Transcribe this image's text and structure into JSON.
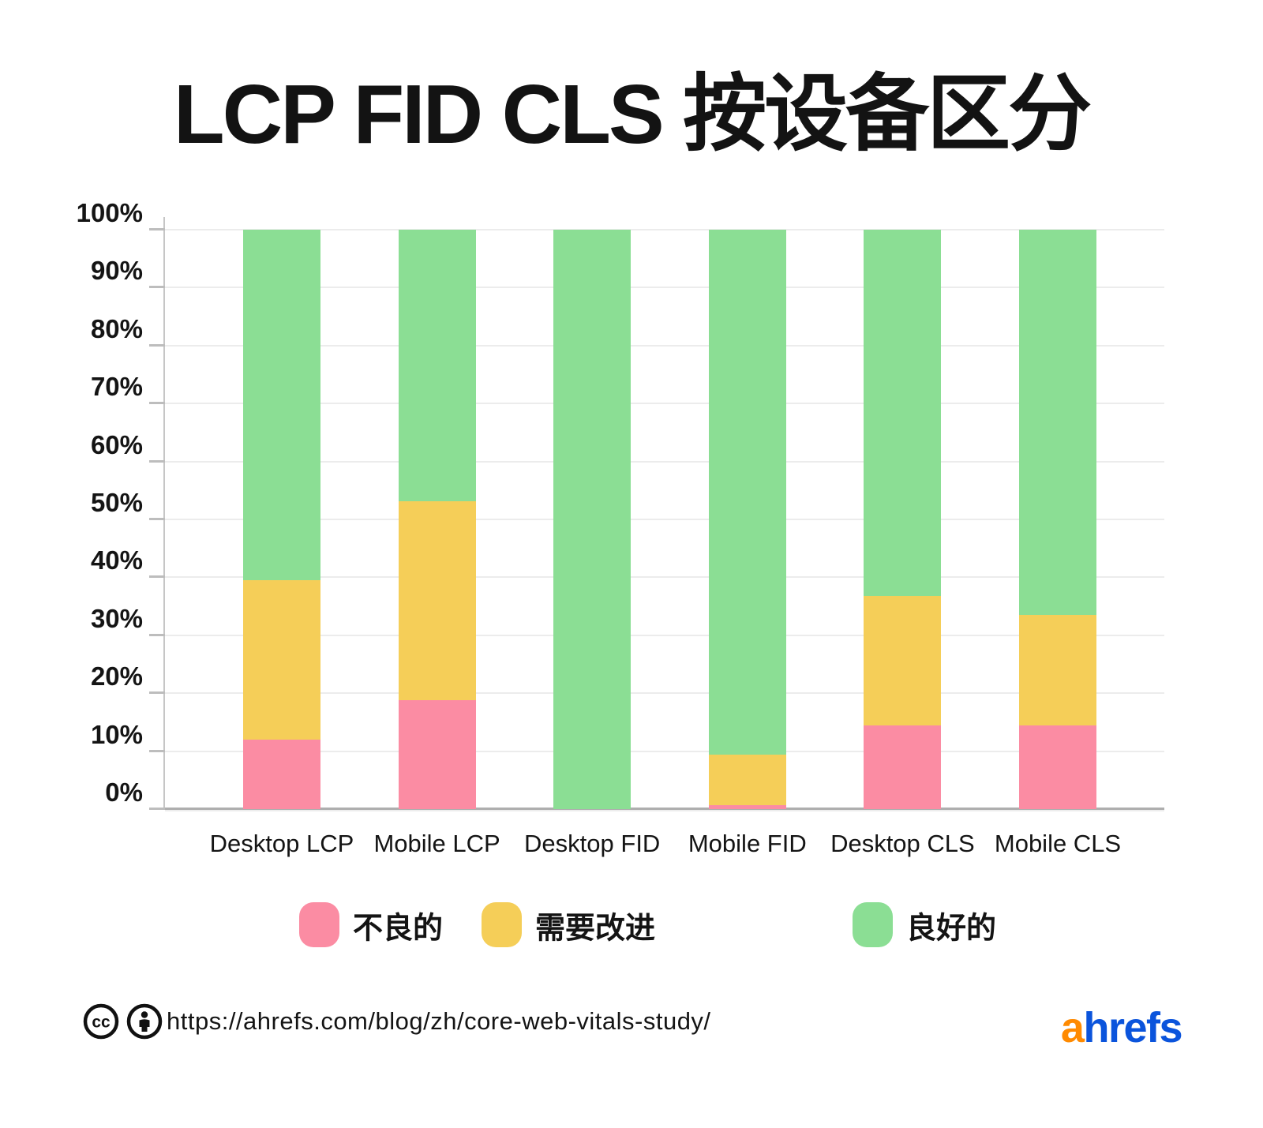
{
  "title": "LCP FID CLS 按设备区分",
  "chart_data": {
    "type": "bar",
    "stacked": true,
    "title": "LCP FID CLS 按设备区分",
    "categories": [
      "Desktop LCP",
      "Mobile LCP",
      "Desktop FID",
      "Mobile FID",
      "Desktop CLS",
      "Mobile CLS"
    ],
    "series": [
      {
        "name": "不良的",
        "color": "#FB8CA3",
        "values": [
          12,
          18.8,
          0,
          0.7,
          14.5,
          14.5
        ]
      },
      {
        "name": "需要改进",
        "color": "#F5CE58",
        "values": [
          27.5,
          34.3,
          0,
          8.7,
          22.3,
          19.0
        ]
      },
      {
        "name": "良好的",
        "color": "#8BDE94",
        "values": [
          60.5,
          46.9,
          100,
          90.6,
          63.2,
          66.5
        ]
      }
    ],
    "ylabel": "",
    "xlabel": "",
    "ylim": [
      0,
      100
    ],
    "y_tick_labels": [
      "0%",
      "10%",
      "20%",
      "30%",
      "40%",
      "50%",
      "60%",
      "70%",
      "80%",
      "90%",
      "100%"
    ],
    "grid": true,
    "legend_position": "bottom"
  },
  "legend": {
    "items": [
      "不良的",
      "需要改进",
      "良好的"
    ]
  },
  "footer": {
    "icons": [
      "cc-icon",
      "attribution-icon"
    ],
    "url": "https://ahrefs.com/blog/zh/core-web-vitals-study/",
    "logo_part1": "a",
    "logo_part2": "hrefs",
    "logo_color1": "#FF8A00",
    "logo_color2": "#0B54DC"
  }
}
